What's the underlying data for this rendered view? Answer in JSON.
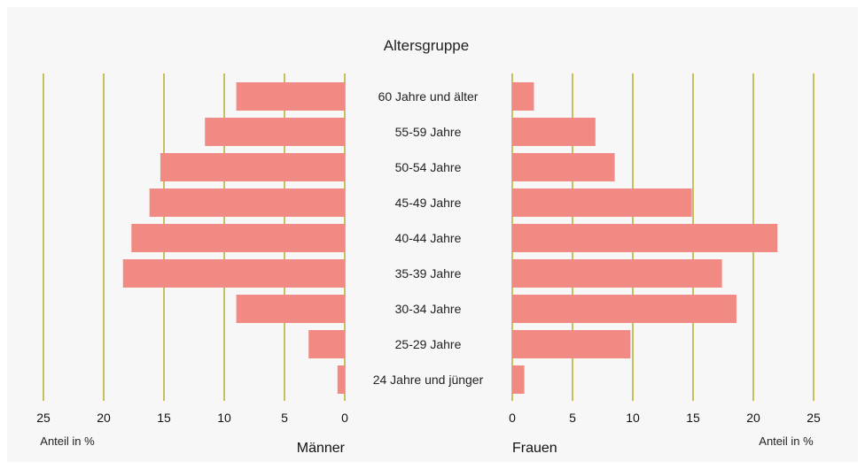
{
  "chart_data": {
    "type": "bar",
    "title": "Altersgruppe",
    "categories": [
      "60 Jahre und älter",
      "55-59 Jahre",
      "50-54 Jahre",
      "45-49 Jahre",
      "40-44 Jahre",
      "35-39 Jahre",
      "30-34 Jahre",
      "25-29 Jahre",
      "24 Jahre und jünger"
    ],
    "series": [
      {
        "name": "Männer",
        "values": [
          9.0,
          11.6,
          15.3,
          16.2,
          17.7,
          18.4,
          9.0,
          3.0,
          0.6
        ]
      },
      {
        "name": "Frauen",
        "values": [
          1.8,
          6.9,
          8.5,
          14.9,
          22.0,
          17.4,
          18.6,
          9.8,
          1.0
        ]
      }
    ],
    "left_ticks": [
      "25",
      "20",
      "15",
      "10",
      "5",
      "0"
    ],
    "right_ticks": [
      "0",
      "5",
      "10",
      "15",
      "20",
      "25"
    ],
    "xlim": [
      0,
      25
    ],
    "xlabel_left": "Anteil in %",
    "xlabel_right": "Anteil in %",
    "bar_color": "#f28a84",
    "grid_color": "#b5ad2c",
    "grid": true
  }
}
